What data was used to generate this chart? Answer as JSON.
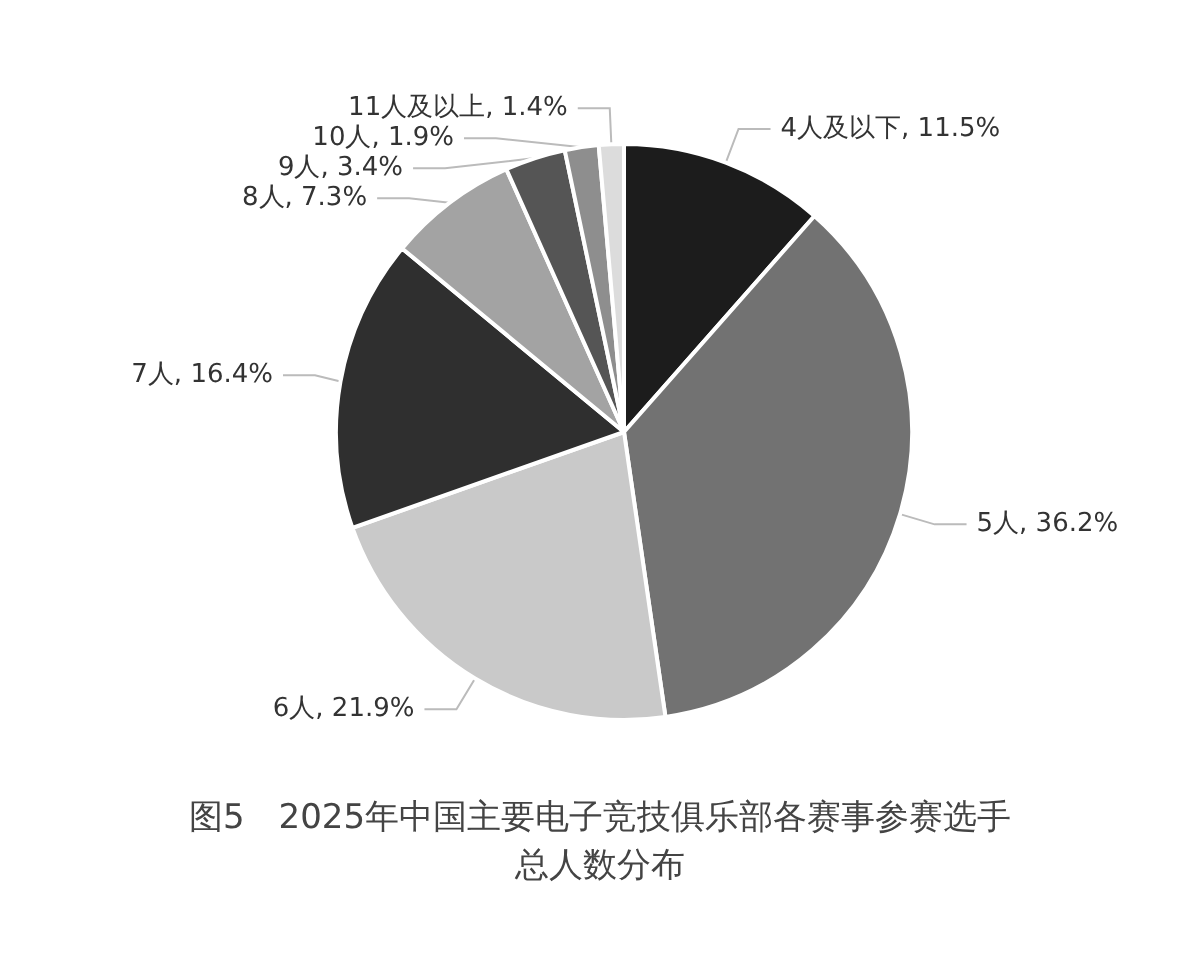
{
  "chart_data": {
    "type": "pie",
    "title": "图5　2025年中国主要电子竞技俱乐部各赛事参赛选手总人数分布",
    "categories": [
      "4人及以下",
      "5人",
      "6人",
      "7人",
      "8人",
      "9人",
      "10人",
      "11人及以上"
    ],
    "values": [
      11.5,
      36.2,
      21.9,
      16.4,
      7.3,
      3.4,
      1.9,
      1.4
    ],
    "colors": [
      "#1c1c1c",
      "#727272",
      "#c9c9c9",
      "#2f2f2f",
      "#a3a3a3",
      "#555555",
      "#8e8e8e",
      "#dcdcdc"
    ],
    "value_labels": [
      ", 11.5%",
      ", 36.2%",
      ", 21.9%",
      ", 16.4%",
      ", 7.3%",
      ", 3.4%",
      ", 1.9%",
      ", 1.4%"
    ],
    "legend": false
  }
}
